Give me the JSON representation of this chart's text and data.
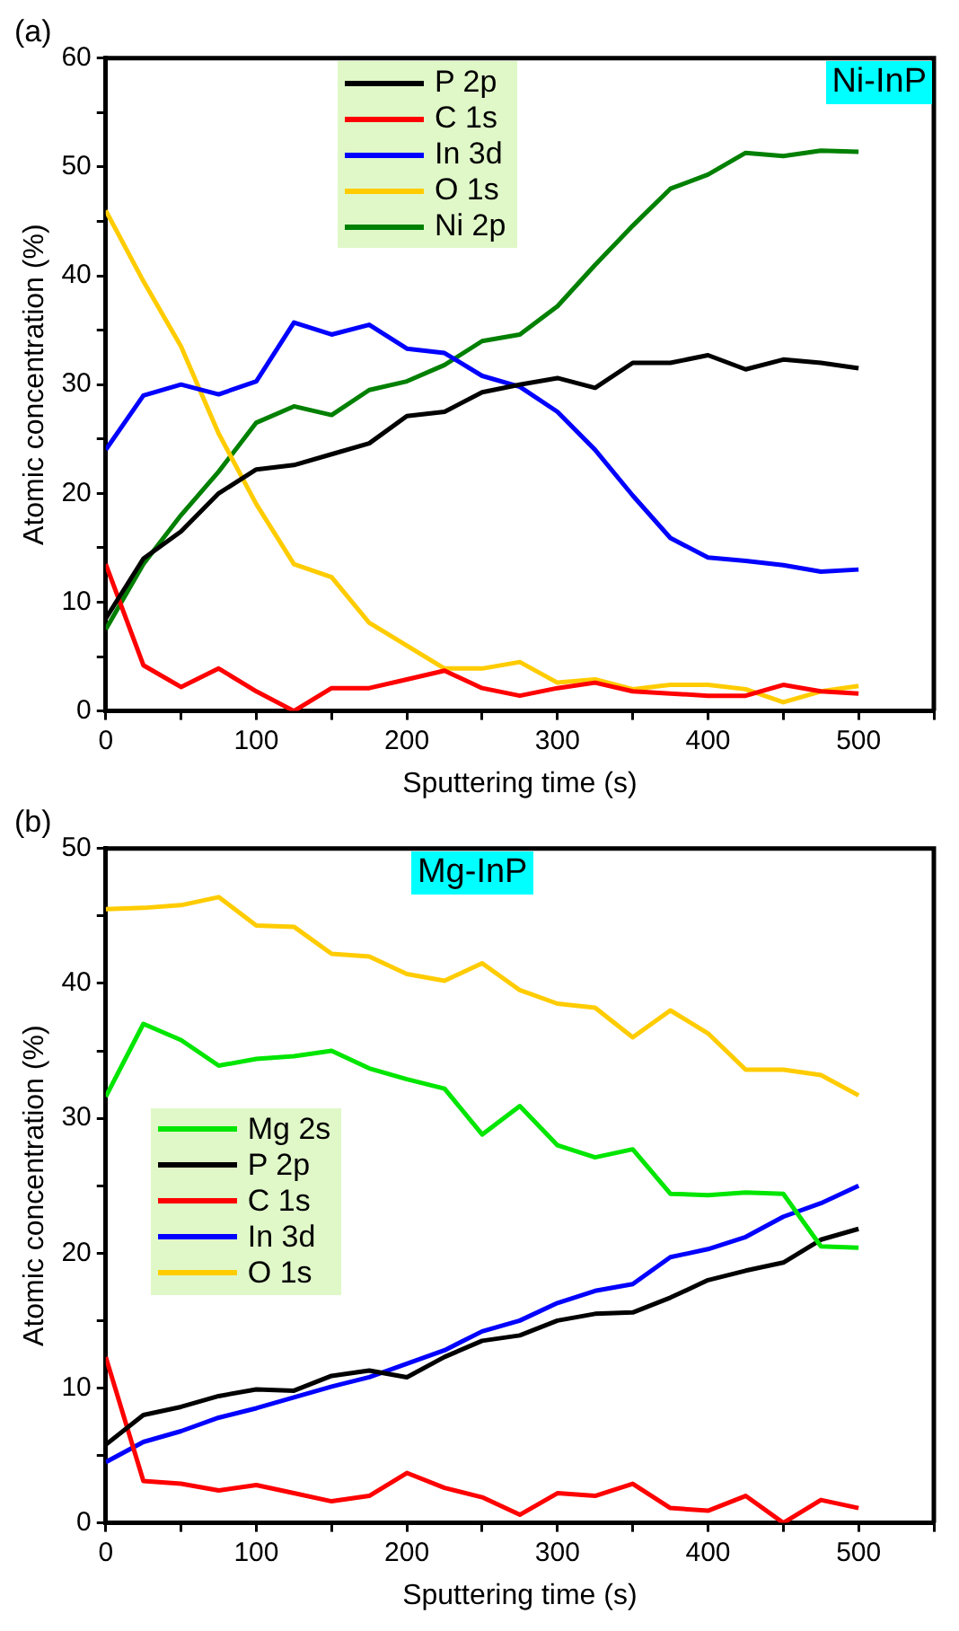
{
  "chart_data": [
    {
      "type": "line",
      "title": "(a)",
      "xlabel": "Sputtering time (s)",
      "ylabel": "Atomic concentration (%)",
      "annotations": [
        "Ni-InP"
      ],
      "x": [
        0,
        25,
        50,
        75,
        100,
        125,
        150,
        175,
        200,
        225,
        250,
        275,
        300,
        325,
        350,
        375,
        400,
        425,
        450,
        475,
        500
      ],
      "xlim": [
        0,
        550
      ],
      "xticks": [
        0,
        {
          "value": 50,
          "label": null
        },
        100,
        {
          "value": 150,
          "label": null
        },
        200,
        {
          "value": 250,
          "label": null
        },
        300,
        {
          "value": 350,
          "label": null
        },
        400,
        {
          "value": 450,
          "label": null
        },
        500,
        {
          "value": 550,
          "label": null
        }
      ],
      "ylim": [
        0,
        60
      ],
      "yticks": [
        0,
        {
          "value": 5,
          "label": null
        },
        10,
        {
          "value": 15,
          "label": null
        },
        20,
        {
          "value": 25,
          "label": null
        },
        30,
        {
          "value": 35,
          "label": null
        },
        40,
        {
          "value": 45,
          "label": null
        },
        50,
        {
          "value": 55,
          "label": null
        },
        60
      ],
      "legend": "top",
      "grid": false,
      "series": [
        {
          "name": "P 2p",
          "color": "#000000",
          "values": [
            8.5,
            14,
            16.5,
            20,
            22.2,
            22.6,
            23.6,
            24.6,
            27.1,
            27.5,
            29.3,
            30,
            30.6,
            29.7,
            32,
            32,
            32.7,
            31.4,
            32.3,
            32,
            31.5
          ]
        },
        {
          "name": "C 1s",
          "color": "#ff0000",
          "values": [
            13.5,
            4.2,
            2.2,
            3.9,
            1.8,
            0,
            2.1,
            2.1,
            2.9,
            3.7,
            2.1,
            1.4,
            2.1,
            2.6,
            1.8,
            1.6,
            1.4,
            1.4,
            2.4,
            1.8,
            1.6
          ]
        },
        {
          "name": "In 3d",
          "color": "#0000ff",
          "values": [
            24,
            29,
            30,
            29.1,
            30.3,
            35.7,
            34.6,
            35.5,
            33.3,
            32.9,
            30.8,
            29.8,
            27.5,
            24,
            19.8,
            15.9,
            14.1,
            13.8,
            13.4,
            12.8,
            13
          ]
        },
        {
          "name": "O 1s",
          "color": "#ffcc00",
          "values": [
            46,
            39.5,
            33.5,
            25.5,
            19,
            13.5,
            12.3,
            8.1,
            6,
            3.9,
            3.9,
            4.5,
            2.6,
            2.9,
            2,
            2.4,
            2.4,
            2,
            0.8,
            1.8,
            2.3
          ]
        },
        {
          "name": "Ni 2p",
          "color": "#008000",
          "values": [
            7.5,
            13.5,
            18,
            22,
            26.5,
            28,
            27.2,
            29.5,
            30.3,
            31.8,
            34,
            34.6,
            37.2,
            41,
            44.6,
            48,
            49.3,
            51.3,
            51,
            51.5,
            51.4
          ]
        }
      ]
    },
    {
      "type": "line",
      "title": "(b)",
      "xlabel": "Sputtering time (s)",
      "ylabel": "Atomic concentration (%)",
      "annotations": [
        "Mg-InP"
      ],
      "x": [
        0,
        25,
        50,
        75,
        100,
        125,
        150,
        175,
        200,
        225,
        250,
        275,
        300,
        325,
        350,
        375,
        400,
        425,
        450,
        475,
        500
      ],
      "xlim": [
        0,
        550
      ],
      "xticks": [
        0,
        {
          "value": 50,
          "label": null
        },
        100,
        {
          "value": 150,
          "label": null
        },
        200,
        {
          "value": 250,
          "label": null
        },
        300,
        {
          "value": 350,
          "label": null
        },
        400,
        {
          "value": 450,
          "label": null
        },
        500,
        {
          "value": 550,
          "label": null
        }
      ],
      "ylim": [
        0,
        50
      ],
      "yticks": [
        0,
        {
          "value": 5,
          "label": null
        },
        10,
        {
          "value": 15,
          "label": null
        },
        20,
        {
          "value": 25,
          "label": null
        },
        30,
        {
          "value": 35,
          "label": null
        },
        40,
        {
          "value": 45,
          "label": null
        },
        50
      ],
      "legend": "left",
      "grid": false,
      "series": [
        {
          "name": "Mg 2s",
          "color": "#00e600",
          "values": [
            31.6,
            37,
            35.8,
            33.9,
            34.4,
            34.6,
            35,
            33.7,
            32.9,
            32.2,
            28.8,
            30.9,
            28,
            27.1,
            27.7,
            24.4,
            24.3,
            24.5,
            24.4,
            20.5,
            20.4
          ]
        },
        {
          "name": "P 2p",
          "color": "#000000",
          "values": [
            5.8,
            8,
            8.6,
            9.4,
            9.9,
            9.8,
            10.9,
            11.3,
            10.8,
            12.3,
            13.5,
            13.9,
            15,
            15.5,
            15.6,
            16.7,
            18,
            18.7,
            19.3,
            21,
            21.8
          ]
        },
        {
          "name": "C 1s",
          "color": "#ff0000",
          "values": [
            12.3,
            3.1,
            2.9,
            2.4,
            2.8,
            2.2,
            1.6,
            2,
            3.7,
            2.6,
            1.9,
            0.6,
            2.2,
            2,
            2.9,
            1.1,
            0.9,
            2,
            0,
            1.7,
            1.1
          ]
        },
        {
          "name": "In 3d",
          "color": "#0000ff",
          "values": [
            4.5,
            6,
            6.8,
            7.8,
            8.5,
            9.3,
            10.1,
            10.8,
            11.8,
            12.8,
            14.2,
            15,
            16.3,
            17.2,
            17.7,
            19.7,
            20.3,
            21.2,
            22.7,
            23.7,
            25
          ]
        },
        {
          "name": "O 1s",
          "color": "#ffcc00",
          "values": [
            45.5,
            45.6,
            45.8,
            46.4,
            44.3,
            44.2,
            42.2,
            42,
            40.7,
            40.2,
            41.5,
            39.5,
            38.5,
            38.2,
            36,
            38,
            36.3,
            33.6,
            33.6,
            33.2,
            31.7
          ]
        }
      ]
    }
  ]
}
